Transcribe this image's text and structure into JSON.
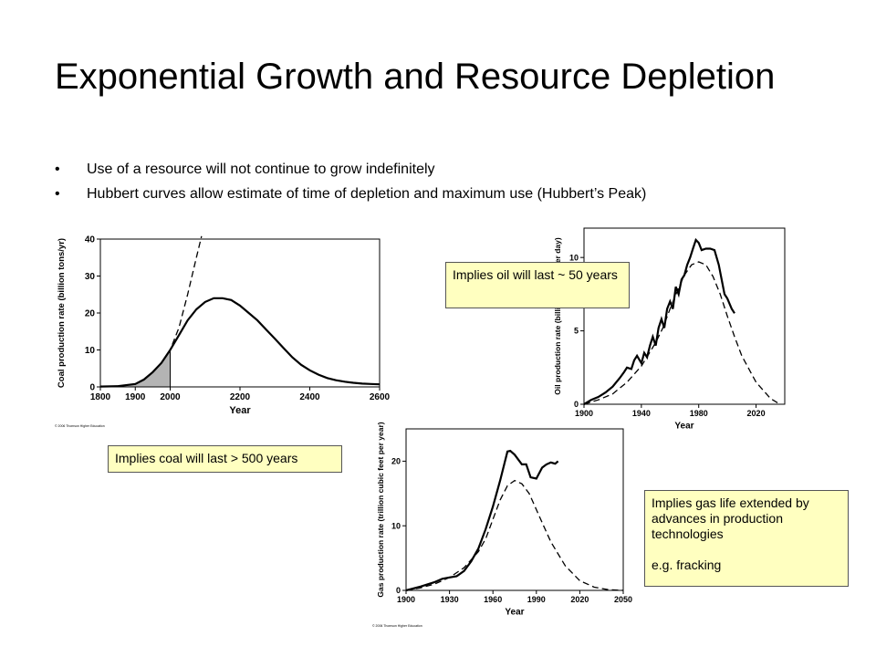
{
  "slide": {
    "title": "Exponential Growth and Resource Depletion",
    "bullets": [
      "Use of a resource will not continue to grow indefinitely",
      "Hubbert curves allow estimate of time of depletion and maximum use (Hubbert’s Peak)"
    ]
  },
  "callouts": {
    "coal": "Implies coal will last > 500 years",
    "oil": "Implies oil will last ~ 50 years",
    "gas_lines": [
      "Implies gas life extended by advances in production technologies",
      "e.g. fracking"
    ]
  },
  "chart_data": [
    {
      "type": "line",
      "xlabel": "Year",
      "ylabel": "Coal production rate (billion tons/yr)",
      "xlim": [
        1800,
        2600
      ],
      "ylim": [
        0,
        40
      ],
      "x_ticks": [
        1800,
        1900,
        2000,
        2200,
        2400,
        2600
      ],
      "y_ticks": [
        0,
        10,
        20,
        30,
        40
      ],
      "credit": "© 2006 Thomson Higher Education",
      "series": [
        {
          "style": "solid",
          "x": [
            1800,
            1850,
            1900,
            1925,
            1950,
            1975,
            2000,
            2025,
            2050,
            2075,
            2100,
            2125,
            2150,
            2175,
            2200,
            2225,
            2250,
            2275,
            2300,
            2325,
            2350,
            2375,
            2400,
            2425,
            2450,
            2475,
            2500,
            2525,
            2550,
            2575,
            2600
          ],
          "y": [
            0.1,
            0.2,
            0.8,
            2,
            4,
            6.5,
            10,
            14,
            18,
            21,
            23,
            24,
            24,
            23.5,
            22,
            20,
            18,
            15.5,
            13,
            10.5,
            8,
            6,
            4.5,
            3.3,
            2.4,
            1.8,
            1.4,
            1.1,
            0.9,
            0.8,
            0.7
          ]
        },
        {
          "style": "dashed",
          "x": [
            1800,
            1850,
            1900,
            1925,
            1950,
            1975,
            2000,
            2025,
            2050,
            2075,
            2090
          ],
          "y": [
            0.1,
            0.2,
            0.8,
            2,
            4,
            6.5,
            10,
            16,
            25,
            35,
            42
          ]
        }
      ],
      "shaded_region": {
        "x_from": 1800,
        "x_to": 2000
      }
    },
    {
      "type": "line",
      "xlabel": "Year",
      "ylabel": "Oil production rate (billion barrels per day)",
      "xlim": [
        1900,
        2040
      ],
      "ylim": [
        0,
        12
      ],
      "x_ticks": [
        1900,
        1940,
        1980,
        2020
      ],
      "y_ticks": [
        0,
        5,
        10
      ],
      "series": [
        {
          "style": "solid",
          "x": [
            1900,
            1905,
            1910,
            1915,
            1920,
            1925,
            1928,
            1930,
            1933,
            1935,
            1937,
            1940,
            1942,
            1944,
            1946,
            1948,
            1950,
            1952,
            1954,
            1956,
            1958,
            1960,
            1962,
            1964,
            1966,
            1968,
            1970,
            1972,
            1974,
            1976,
            1978,
            1980,
            1982,
            1985,
            1988,
            1991,
            1994,
            1998,
            2000,
            2003,
            2005
          ],
          "y": [
            0,
            0.3,
            0.5,
            0.8,
            1.2,
            1.8,
            2.2,
            2.5,
            2.4,
            3,
            3.3,
            2.8,
            3.5,
            3.2,
            4,
            4.6,
            4,
            5.2,
            5.8,
            5.2,
            6.5,
            7,
            6.5,
            8,
            7.5,
            8.5,
            8.8,
            9.5,
            10,
            10.6,
            11.2,
            11,
            10.5,
            10.6,
            10.6,
            10.5,
            9.5,
            7.5,
            7.2,
            6.5,
            6.2
          ]
        },
        {
          "style": "dashed",
          "x": [
            1900,
            1910,
            1920,
            1930,
            1940,
            1950,
            1955,
            1960,
            1965,
            1970,
            1975,
            1980,
            1985,
            1990,
            1995,
            2000,
            2005,
            2010,
            2020,
            2030,
            2035
          ],
          "y": [
            0,
            0.3,
            0.7,
            1.5,
            2.6,
            4.2,
            5.2,
            6.5,
            7.7,
            8.8,
            9.5,
            9.7,
            9.5,
            8.7,
            7.5,
            6,
            4.6,
            3.3,
            1.5,
            0.4,
            0.1
          ]
        }
      ]
    },
    {
      "type": "line",
      "xlabel": "Year",
      "ylabel": "Gas production rate (trillion cubic feet per year)",
      "xlim": [
        1900,
        2050
      ],
      "ylim": [
        0,
        25
      ],
      "x_ticks": [
        1900,
        1930,
        1960,
        1990,
        2020,
        2050
      ],
      "y_ticks": [
        0,
        10,
        20
      ],
      "credit": "© 2006 Thomson Higher Education",
      "series": [
        {
          "style": "solid",
          "x": [
            1900,
            1910,
            1920,
            1925,
            1930,
            1935,
            1940,
            1945,
            1950,
            1955,
            1960,
            1965,
            1970,
            1972,
            1975,
            1980,
            1983,
            1986,
            1990,
            1994,
            1997,
            2000,
            2003,
            2005
          ],
          "y": [
            0,
            0.6,
            1.3,
            1.8,
            2,
            2.2,
            3,
            4.5,
            6.5,
            9.5,
            13,
            17,
            21.5,
            21.6,
            21,
            19.5,
            19.5,
            17.5,
            17.3,
            19,
            19.5,
            19.8,
            19.6,
            20
          ]
        },
        {
          "style": "dashed",
          "x": [
            1900,
            1910,
            1920,
            1930,
            1940,
            1950,
            1955,
            1960,
            1965,
            1970,
            1975,
            1980,
            1985,
            1990,
            1995,
            2000,
            2010,
            2020,
            2030,
            2040,
            2050
          ],
          "y": [
            0,
            0.4,
            1,
            2,
            3.5,
            6,
            8,
            11,
            14,
            16.2,
            17,
            16.5,
            15,
            12.5,
            10,
            7.5,
            3.8,
            1.5,
            0.5,
            0.1,
            0
          ]
        }
      ]
    }
  ]
}
